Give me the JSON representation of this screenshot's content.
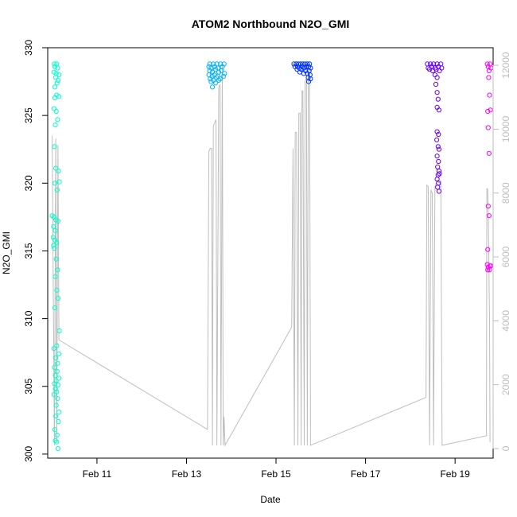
{
  "chart_data": {
    "type": "scatter",
    "title": "ATOM2 Northbound N2O_GMI",
    "xlabel": "Date",
    "ylabel": "N2O_GMI",
    "x_ticks": [
      "Feb 11",
      "Feb 13",
      "Feb 15",
      "Feb 17",
      "Feb 19"
    ],
    "x_tick_days": [
      11,
      13,
      15,
      17,
      19
    ],
    "xlim": [
      9.9,
      19.85
    ],
    "y_ticks": [
      300,
      305,
      310,
      315,
      320,
      325,
      330
    ],
    "ylim": [
      299.7,
      330
    ],
    "y2_ticks": [
      0,
      2000,
      4000,
      6000,
      8000,
      10000,
      12000
    ],
    "y2lim": [
      -300,
      12550
    ],
    "grid": false,
    "legend": "none",
    "colors": {
      "flight1": "#00ffcc",
      "flight2": "#00b3ff",
      "flight3": "#0033ff",
      "flight4": "#6600ff",
      "flight5": "#ff00ff",
      "altitude": "#bebebe",
      "axis": "#000000",
      "axis2": "#bebebe"
    },
    "series": [
      {
        "flight": 1,
        "color_key": "flight1",
        "points": [
          [
            10.05,
            328.8
          ],
          [
            10.1,
            328.8
          ],
          [
            10.06,
            328.6
          ],
          [
            10.12,
            328.5
          ],
          [
            10.04,
            328.2
          ],
          [
            10.09,
            328.1
          ],
          [
            10.15,
            328.0
          ],
          [
            10.08,
            327.8
          ],
          [
            10.13,
            327.6
          ],
          [
            10.11,
            327.4
          ],
          [
            10.06,
            327.1
          ],
          [
            10.1,
            326.5
          ],
          [
            10.06,
            326.3
          ],
          [
            10.15,
            326.4
          ],
          [
            10.04,
            325.5
          ],
          [
            10.09,
            325.3
          ],
          [
            10.12,
            324.7
          ],
          [
            10.07,
            324.3
          ],
          [
            10.05,
            322.7
          ],
          [
            10.08,
            321.1
          ],
          [
            10.14,
            320.9
          ],
          [
            10.06,
            320.0
          ],
          [
            10.16,
            320.1
          ],
          [
            10.11,
            319.5
          ],
          [
            10.0,
            317.6
          ],
          [
            10.04,
            317.5
          ],
          [
            10.08,
            317.3
          ],
          [
            10.13,
            317.2
          ],
          [
            10.03,
            316.8
          ],
          [
            10.07,
            316.5
          ],
          [
            10.02,
            316.0
          ],
          [
            10.06,
            315.8
          ],
          [
            10.1,
            315.6
          ],
          [
            10.03,
            315.4
          ],
          [
            10.05,
            315.2
          ],
          [
            10.09,
            314.4
          ],
          [
            10.12,
            313.6
          ],
          [
            10.07,
            313.1
          ],
          [
            10.1,
            312.1
          ],
          [
            10.13,
            311.5
          ],
          [
            10.06,
            310.8
          ],
          [
            10.16,
            309.1
          ],
          [
            10.1,
            308.0
          ],
          [
            10.04,
            307.8
          ],
          [
            10.15,
            307.4
          ],
          [
            10.08,
            307.1
          ],
          [
            10.12,
            306.7
          ],
          [
            10.05,
            306.4
          ],
          [
            10.11,
            306.1
          ],
          [
            10.07,
            305.8
          ],
          [
            10.15,
            305.6
          ],
          [
            10.09,
            305.4
          ],
          [
            10.05,
            305.2
          ],
          [
            10.13,
            305.1
          ],
          [
            10.07,
            304.8
          ],
          [
            10.1,
            304.6
          ],
          [
            10.04,
            304.4
          ],
          [
            10.12,
            304.1
          ],
          [
            10.09,
            303.6
          ],
          [
            10.15,
            303.1
          ],
          [
            10.08,
            302.8
          ],
          [
            10.14,
            302.4
          ],
          [
            10.06,
            301.8
          ],
          [
            10.11,
            301.4
          ],
          [
            10.07,
            301.0
          ],
          [
            10.1,
            300.9
          ],
          [
            10.13,
            300.4
          ]
        ]
      },
      {
        "flight": 2,
        "color_key": "flight2",
        "points": [
          [
            13.52,
            328.8
          ],
          [
            13.6,
            328.8
          ],
          [
            13.68,
            328.8
          ],
          [
            13.76,
            328.8
          ],
          [
            13.84,
            328.8
          ],
          [
            13.5,
            328.6
          ],
          [
            13.55,
            328.5
          ],
          [
            13.63,
            328.6
          ],
          [
            13.7,
            328.5
          ],
          [
            13.8,
            328.6
          ],
          [
            13.52,
            328.3
          ],
          [
            13.58,
            328.2
          ],
          [
            13.65,
            328.4
          ],
          [
            13.72,
            328.2
          ],
          [
            13.78,
            328.3
          ],
          [
            13.85,
            328.1
          ],
          [
            13.5,
            328.0
          ],
          [
            13.57,
            327.9
          ],
          [
            13.62,
            328.0
          ],
          [
            13.7,
            327.9
          ],
          [
            13.83,
            327.9
          ],
          [
            13.53,
            327.7
          ],
          [
            13.6,
            327.6
          ],
          [
            13.67,
            327.8
          ],
          [
            13.75,
            327.7
          ],
          [
            13.55,
            327.5
          ],
          [
            13.65,
            327.4
          ],
          [
            13.72,
            327.6
          ],
          [
            13.58,
            327.1
          ]
        ]
      },
      {
        "flight": 3,
        "color_key": "flight3",
        "points": [
          [
            15.4,
            328.8
          ],
          [
            15.45,
            328.8
          ],
          [
            15.5,
            328.8
          ],
          [
            15.55,
            328.8
          ],
          [
            15.6,
            328.8
          ],
          [
            15.65,
            328.8
          ],
          [
            15.7,
            328.8
          ],
          [
            15.75,
            328.8
          ],
          [
            15.42,
            328.6
          ],
          [
            15.48,
            328.6
          ],
          [
            15.52,
            328.5
          ],
          [
            15.58,
            328.6
          ],
          [
            15.63,
            328.5
          ],
          [
            15.68,
            328.6
          ],
          [
            15.73,
            328.6
          ],
          [
            15.77,
            328.5
          ],
          [
            15.47,
            328.4
          ],
          [
            15.56,
            328.4
          ],
          [
            15.66,
            328.3
          ],
          [
            15.74,
            328.3
          ],
          [
            15.53,
            328.2
          ],
          [
            15.62,
            328.1
          ],
          [
            15.7,
            328.1
          ],
          [
            15.76,
            328.0
          ],
          [
            15.72,
            327.8
          ],
          [
            15.77,
            327.7
          ],
          [
            15.73,
            327.5
          ]
        ]
      },
      {
        "flight": 4,
        "color_key": "flight4",
        "points": [
          [
            18.38,
            328.8
          ],
          [
            18.45,
            328.8
          ],
          [
            18.52,
            328.8
          ],
          [
            18.6,
            328.8
          ],
          [
            18.68,
            328.8
          ],
          [
            18.4,
            328.5
          ],
          [
            18.48,
            328.6
          ],
          [
            18.55,
            328.5
          ],
          [
            18.63,
            328.6
          ],
          [
            18.7,
            328.5
          ],
          [
            18.43,
            328.4
          ],
          [
            18.5,
            328.3
          ],
          [
            18.58,
            328.4
          ],
          [
            18.65,
            328.3
          ],
          [
            18.55,
            328.0
          ],
          [
            18.6,
            327.8
          ],
          [
            18.57,
            327.3
          ],
          [
            18.6,
            326.7
          ],
          [
            18.62,
            326.2
          ],
          [
            18.6,
            325.6
          ],
          [
            18.64,
            325.4
          ],
          [
            18.6,
            323.8
          ],
          [
            18.63,
            323.6
          ],
          [
            18.59,
            323.2
          ],
          [
            18.62,
            322.7
          ],
          [
            18.64,
            322.5
          ],
          [
            18.6,
            322.0
          ],
          [
            18.63,
            321.6
          ],
          [
            18.61,
            321.2
          ],
          [
            18.64,
            320.9
          ],
          [
            18.62,
            320.6
          ],
          [
            18.65,
            320.7
          ],
          [
            18.6,
            320.3
          ],
          [
            18.63,
            320.0
          ],
          [
            18.61,
            319.7
          ],
          [
            18.64,
            319.4
          ]
        ]
      },
      {
        "flight": 5,
        "color_key": "flight5",
        "points": [
          [
            19.72,
            328.8
          ],
          [
            19.78,
            328.8
          ],
          [
            19.74,
            328.6
          ],
          [
            19.8,
            328.5
          ],
          [
            19.76,
            328.3
          ],
          [
            19.75,
            327.8
          ],
          [
            19.77,
            326.5
          ],
          [
            19.73,
            325.3
          ],
          [
            19.79,
            325.4
          ],
          [
            19.74,
            324.1
          ],
          [
            19.76,
            322.2
          ],
          [
            19.74,
            318.3
          ],
          [
            19.76,
            317.6
          ],
          [
            19.73,
            315.1
          ],
          [
            19.72,
            314.0
          ],
          [
            19.78,
            313.9
          ],
          [
            19.74,
            313.8
          ],
          [
            19.8,
            313.9
          ],
          [
            19.73,
            313.6
          ],
          [
            19.77,
            313.6
          ]
        ]
      }
    ],
    "altitude": [
      [
        10.0,
        9800
      ],
      [
        10.05,
        100
      ],
      [
        10.08,
        9700
      ],
      [
        10.1,
        200
      ],
      [
        10.13,
        9500
      ],
      [
        10.15,
        3400
      ],
      [
        13.47,
        600
      ],
      [
        13.5,
        9300
      ],
      [
        13.53,
        9400
      ],
      [
        13.56,
        9400
      ],
      [
        13.58,
        100
      ],
      [
        13.6,
        10100
      ],
      [
        13.63,
        10200
      ],
      [
        13.66,
        10300
      ],
      [
        13.68,
        100
      ],
      [
        13.72,
        11300
      ],
      [
        13.75,
        11400
      ],
      [
        13.77,
        100
      ],
      [
        13.8,
        12050
      ],
      [
        13.82,
        100
      ],
      [
        13.84,
        1000
      ],
      [
        13.86,
        100
      ],
      [
        15.35,
        3800
      ],
      [
        15.38,
        9400
      ],
      [
        15.41,
        100
      ],
      [
        15.43,
        9900
      ],
      [
        15.46,
        9900
      ],
      [
        15.49,
        100
      ],
      [
        15.51,
        10500
      ],
      [
        15.54,
        10500
      ],
      [
        15.56,
        100
      ],
      [
        15.58,
        11200
      ],
      [
        15.6,
        11200
      ],
      [
        15.63,
        100
      ],
      [
        15.65,
        11500
      ],
      [
        15.68,
        11600
      ],
      [
        15.7,
        100
      ],
      [
        15.72,
        11700
      ],
      [
        15.75,
        11800
      ],
      [
        15.77,
        100
      ],
      [
        18.35,
        1600
      ],
      [
        18.37,
        8250
      ],
      [
        18.4,
        8200
      ],
      [
        18.43,
        100
      ],
      [
        18.46,
        8100
      ],
      [
        18.49,
        8000
      ],
      [
        18.52,
        100
      ],
      [
        18.55,
        8200
      ],
      [
        18.6,
        8400
      ],
      [
        18.65,
        8300
      ],
      [
        18.68,
        8400
      ],
      [
        18.71,
        100
      ],
      [
        19.7,
        400
      ],
      [
        19.71,
        8150
      ],
      [
        19.73,
        8100
      ],
      [
        19.75,
        6500
      ],
      [
        19.76,
        5200
      ],
      [
        19.77,
        4000
      ],
      [
        19.78,
        200
      ]
    ]
  }
}
